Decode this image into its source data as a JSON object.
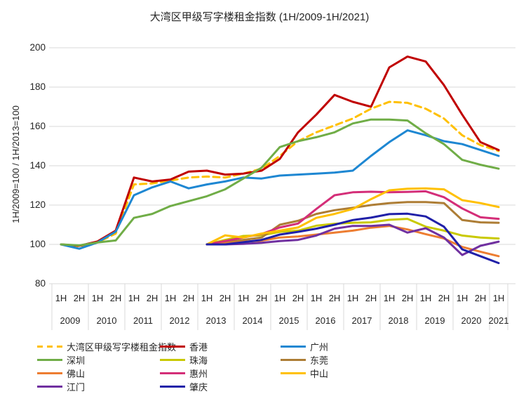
{
  "title": "大湾区甲级写字楼租金指数 (1H/2009-1H/2021)",
  "y_axis": {
    "label": "1H/2009=100 / 1H/2013=100",
    "ticks": [
      80,
      100,
      120,
      140,
      160,
      180,
      200
    ]
  },
  "x_axis": {
    "half_labels": [
      "1H",
      "2H",
      "1H",
      "2H",
      "1H",
      "2H",
      "1H",
      "2H",
      "1H",
      "2H",
      "1H",
      "2H",
      "1H",
      "2H",
      "1H",
      "2H",
      "1H",
      "2H",
      "1H",
      "2H",
      "1H",
      "2H",
      "1H",
      "2H",
      "1H"
    ],
    "years": [
      "2009",
      "2010",
      "2011",
      "2012",
      "2013",
      "2014",
      "2015",
      "2016",
      "2017",
      "2018",
      "2019",
      "2020",
      "2021"
    ]
  },
  "colors": {
    "gridline": "#d9d9d9",
    "text": "#262626"
  },
  "chart_data": {
    "type": "line",
    "x": [
      "1H/2009",
      "2H/2009",
      "1H/2010",
      "2H/2010",
      "1H/2011",
      "2H/2011",
      "1H/2012",
      "2H/2012",
      "1H/2013",
      "2H/2013",
      "1H/2014",
      "2H/2014",
      "1H/2015",
      "2H/2015",
      "1H/2016",
      "2H/2016",
      "1H/2017",
      "2H/2017",
      "1H/2018",
      "2H/2018",
      "1H/2019",
      "2H/2019",
      "1H/2020",
      "2H/2020",
      "1H/2021"
    ],
    "ylim": [
      80,
      200
    ],
    "grid": "horizontal",
    "legend_position": "bottom",
    "series": [
      {
        "name": "大湾区甲级写字楼租金指数",
        "color": "#FFC000",
        "dashed": true,
        "values": [
          100,
          99,
          101,
          105.5,
          130.5,
          131,
          132.5,
          134,
          134.5,
          134,
          136,
          138.5,
          145,
          152.5,
          157,
          160.5,
          164,
          169,
          172.5,
          172,
          169,
          164,
          155.5,
          150.5,
          147.5
        ]
      },
      {
        "name": "香港",
        "color": "#C00000",
        "dashed": false,
        "values": [
          100,
          99.3,
          101.5,
          107,
          134,
          132,
          133,
          137,
          137.5,
          135.5,
          136,
          137.5,
          143.5,
          157,
          166,
          176,
          172.5,
          170,
          190,
          195.5,
          193,
          181,
          166,
          152,
          148
        ]
      },
      {
        "name": "广州",
        "color": "#1E87D2",
        "dashed": false,
        "values": [
          100,
          97.8,
          101,
          106.5,
          125,
          129,
          132,
          128.5,
          130.5,
          132,
          134,
          133.5,
          135,
          135.5,
          136,
          136.5,
          137.5,
          145,
          152,
          158,
          155.5,
          152.5,
          151,
          148,
          145
        ]
      },
      {
        "name": "深圳",
        "color": "#70AD47",
        "dashed": false,
        "values": [
          100,
          99.5,
          101,
          102,
          113.5,
          115.5,
          119.5,
          122,
          124.5,
          128,
          133.5,
          139,
          149.5,
          152.5,
          154.5,
          157,
          161.5,
          163.5,
          163.5,
          163,
          156.5,
          151,
          143,
          140.5,
          138.5
        ]
      },
      {
        "name": "珠海",
        "color": "#C9C900",
        "dashed": false,
        "values": [
          null,
          null,
          null,
          null,
          null,
          null,
          null,
          null,
          100,
          102.3,
          104.3,
          104.6,
          106.4,
          107,
          109.5,
          110.5,
          111,
          111.2,
          112.5,
          113,
          109,
          107,
          104.5,
          103.5,
          103
        ]
      },
      {
        "name": "东莞",
        "color": "#AD7D35",
        "dashed": false,
        "values": [
          null,
          null,
          null,
          null,
          null,
          null,
          null,
          null,
          100,
          101,
          102.3,
          103.5,
          110,
          112,
          115.5,
          117.4,
          118.6,
          120,
          121,
          121.5,
          121.5,
          121,
          112.4,
          111.2,
          111
        ]
      },
      {
        "name": "佛山",
        "color": "#ED7D31",
        "dashed": false,
        "values": [
          null,
          null,
          null,
          null,
          null,
          null,
          null,
          null,
          100,
          100.5,
          101.4,
          101.9,
          103.5,
          104,
          105,
          106,
          107,
          108.5,
          109.4,
          107.6,
          105.2,
          103,
          98.7,
          96.3,
          94
        ]
      },
      {
        "name": "惠州",
        "color": "#D42E78",
        "dashed": false,
        "values": [
          null,
          null,
          null,
          null,
          null,
          null,
          null,
          null,
          100,
          101.7,
          103.5,
          105.3,
          108.6,
          110.6,
          118,
          125,
          126.5,
          126.8,
          126.5,
          126.7,
          127,
          124,
          118.3,
          113.8,
          113
        ]
      },
      {
        "name": "中山",
        "color": "#FFC000",
        "dashed": false,
        "values": [
          null,
          null,
          null,
          null,
          null,
          null,
          null,
          null,
          100,
          104.6,
          103.5,
          105.5,
          107,
          108.6,
          113.5,
          115.5,
          118,
          123,
          127.5,
          128.3,
          128.5,
          128,
          122.5,
          121,
          119
        ]
      },
      {
        "name": "江门",
        "color": "#7030A0",
        "dashed": false,
        "values": [
          null,
          null,
          null,
          null,
          null,
          null,
          null,
          null,
          100,
          100,
          100.3,
          100.8,
          101.7,
          102.3,
          104.5,
          108,
          109.4,
          109.4,
          110,
          106,
          108.2,
          103.5,
          94.6,
          99.3,
          101.4
        ]
      },
      {
        "name": "肇庆",
        "color": "#2020A8",
        "dashed": false,
        "values": [
          null,
          null,
          null,
          null,
          null,
          null,
          null,
          null,
          100,
          100,
          101.1,
          102.3,
          105,
          106.4,
          108,
          110,
          112.4,
          113.6,
          115.4,
          115.6,
          114.2,
          109,
          97.5,
          94,
          90.5
        ]
      }
    ]
  }
}
